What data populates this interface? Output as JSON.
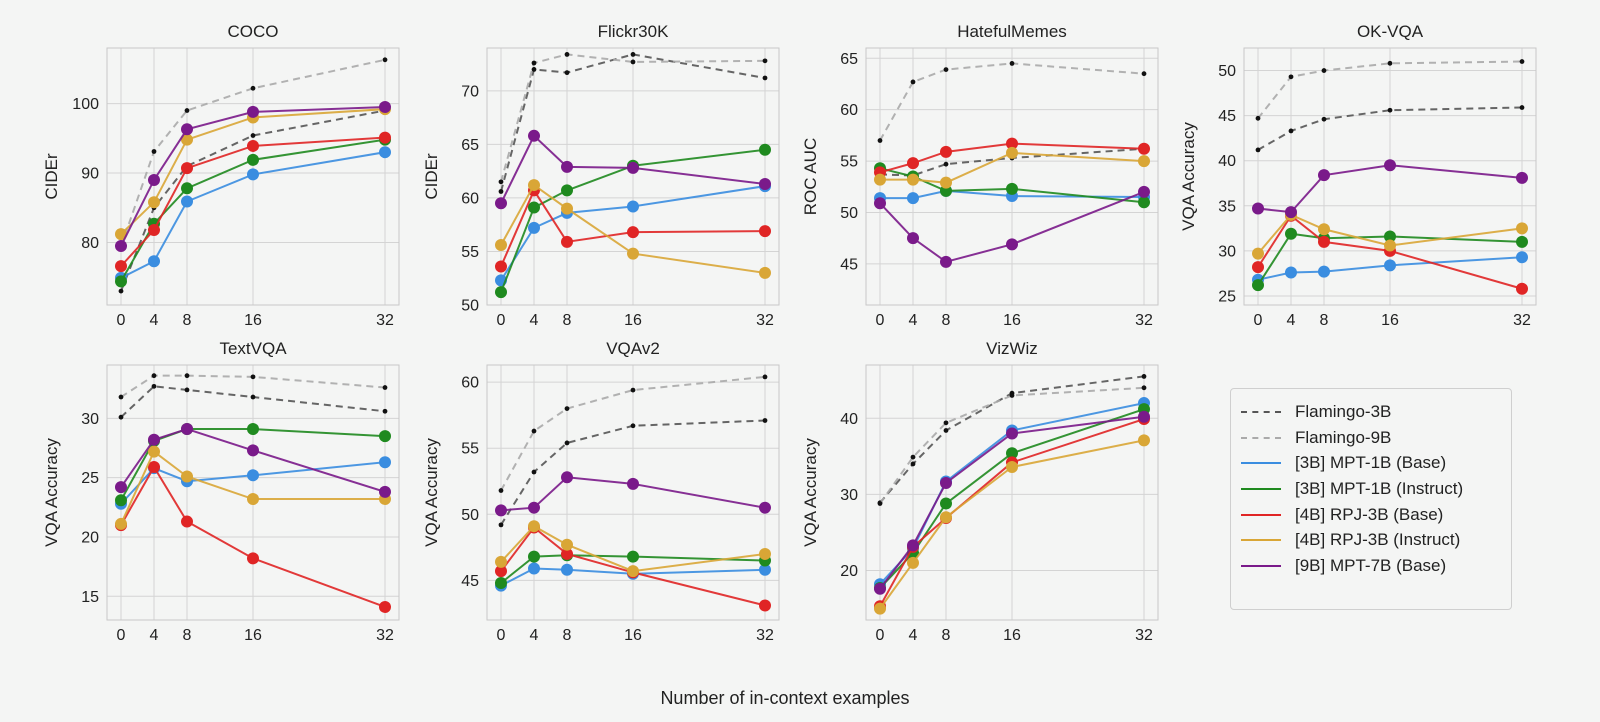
{
  "figure": {
    "xlabel": "Number of in-context examples"
  },
  "legend": [
    {
      "name": "Flamingo-3B",
      "color": "#555555",
      "style": "dashed"
    },
    {
      "name": "Flamingo-9B",
      "color": "#aaaaaa",
      "style": "dashed"
    },
    {
      "name": "[3B] MPT-1B (Base)",
      "color": "#3a8de0",
      "style": "solid"
    },
    {
      "name": "[3B] MPT-1B (Instruct)",
      "color": "#1f8a1f",
      "style": "solid"
    },
    {
      "name": "[4B] RPJ-3B (Base)",
      "color": "#e02525",
      "style": "solid"
    },
    {
      "name": "[4B] RPJ-3B (Instruct)",
      "color": "#d9a636",
      "style": "solid"
    },
    {
      "name": "[9B] MPT-7B (Base)",
      "color": "#7a1a8a",
      "style": "solid"
    }
  ],
  "chart_data": [
    {
      "type": "line",
      "title": "COCO",
      "ylabel": "CIDEr",
      "x": [
        0,
        4,
        8,
        16,
        32
      ],
      "xticks": [
        0,
        4,
        8,
        16,
        32
      ],
      "ylim": [
        71,
        108
      ],
      "yticks": [
        80,
        90,
        100
      ],
      "grid": true,
      "series": [
        {
          "name": "Flamingo-3B",
          "values": [
            73.0,
            85.0,
            91.0,
            95.4,
            99.0
          ]
        },
        {
          "name": "Flamingo-9B",
          "values": [
            79.4,
            93.1,
            99.0,
            102.2,
            106.3
          ]
        },
        {
          "name": "[3B] MPT-1B (Base)",
          "values": [
            74.9,
            77.3,
            85.9,
            89.8,
            93.0
          ]
        },
        {
          "name": "[3B] MPT-1B (Instruct)",
          "values": [
            74.4,
            82.7,
            87.8,
            91.9,
            94.8
          ]
        },
        {
          "name": "[4B] RPJ-3B (Base)",
          "values": [
            76.6,
            81.8,
            90.7,
            93.9,
            95.1
          ]
        },
        {
          "name": "[4B] RPJ-3B (Instruct)",
          "values": [
            81.2,
            85.8,
            94.8,
            98.0,
            99.2
          ]
        },
        {
          "name": "[9B] MPT-7B (Base)",
          "values": [
            79.5,
            89.0,
            96.3,
            98.8,
            99.5
          ]
        }
      ]
    },
    {
      "type": "line",
      "title": "Flickr30K",
      "ylabel": "CIDEr",
      "x": [
        0,
        4,
        8,
        16,
        32
      ],
      "xticks": [
        0,
        4,
        8,
        16,
        32
      ],
      "ylim": [
        50,
        74
      ],
      "yticks": [
        50,
        55,
        60,
        65,
        70
      ],
      "grid": true,
      "series": [
        {
          "name": "Flamingo-3B",
          "values": [
            60.6,
            72.0,
            71.7,
            73.4,
            71.2
          ]
        },
        {
          "name": "Flamingo-9B",
          "values": [
            61.5,
            72.6,
            73.4,
            72.7,
            72.8
          ]
        },
        {
          "name": "[3B] MPT-1B (Base)",
          "values": [
            52.3,
            57.2,
            58.6,
            59.2,
            61.1
          ]
        },
        {
          "name": "[3B] MPT-1B (Instruct)",
          "values": [
            51.2,
            59.1,
            60.7,
            63.0,
            64.5
          ]
        },
        {
          "name": "[4B] RPJ-3B (Base)",
          "values": [
            53.6,
            60.7,
            55.9,
            56.8,
            56.9
          ]
        },
        {
          "name": "[4B] RPJ-3B (Instruct)",
          "values": [
            55.6,
            61.2,
            59.0,
            54.8,
            53.0
          ]
        },
        {
          "name": "[9B] MPT-7B (Base)",
          "values": [
            59.5,
            65.8,
            62.9,
            62.8,
            61.3
          ]
        }
      ]
    },
    {
      "type": "line",
      "title": "HatefulMemes",
      "ylabel": "ROC AUC",
      "x": [
        0,
        4,
        8,
        16,
        32
      ],
      "xticks": [
        0,
        4,
        8,
        16,
        32
      ],
      "ylim": [
        41,
        66
      ],
      "yticks": [
        45,
        50,
        55,
        60,
        65
      ],
      "grid": true,
      "series": [
        {
          "name": "Flamingo-3B",
          "values": [
            53.7,
            53.6,
            54.7,
            55.3,
            56.2
          ]
        },
        {
          "name": "Flamingo-9B",
          "values": [
            57.0,
            62.7,
            63.9,
            64.5,
            63.5
          ]
        },
        {
          "name": "[3B] MPT-1B (Base)",
          "values": [
            51.4,
            51.4,
            52.1,
            51.6,
            51.5
          ]
        },
        {
          "name": "[3B] MPT-1B (Instruct)",
          "values": [
            54.3,
            53.5,
            52.1,
            52.3,
            51.0
          ]
        },
        {
          "name": "[4B] RPJ-3B (Base)",
          "values": [
            53.9,
            54.8,
            55.9,
            56.7,
            56.2
          ]
        },
        {
          "name": "[4B] RPJ-3B (Instruct)",
          "values": [
            53.2,
            53.2,
            52.9,
            55.8,
            55.0
          ]
        },
        {
          "name": "[9B] MPT-7B (Base)",
          "values": [
            50.9,
            47.5,
            45.2,
            46.9,
            52.0
          ]
        }
      ]
    },
    {
      "type": "line",
      "title": "OK-VQA",
      "ylabel": "VQA Accuracy",
      "x": [
        0,
        4,
        8,
        16,
        32
      ],
      "xticks": [
        0,
        4,
        8,
        16,
        32
      ],
      "ylim": [
        24,
        52.5
      ],
      "yticks": [
        25,
        30,
        35,
        40,
        45,
        50
      ],
      "grid": true,
      "series": [
        {
          "name": "Flamingo-3B",
          "values": [
            41.2,
            43.3,
            44.6,
            45.6,
            45.9
          ]
        },
        {
          "name": "Flamingo-9B",
          "values": [
            44.7,
            49.3,
            50.0,
            50.8,
            51.0
          ]
        },
        {
          "name": "[3B] MPT-1B (Base)",
          "values": [
            26.8,
            27.6,
            27.7,
            28.4,
            29.3
          ]
        },
        {
          "name": "[3B] MPT-1B (Instruct)",
          "values": [
            26.2,
            31.9,
            31.4,
            31.6,
            31.0
          ]
        },
        {
          "name": "[4B] RPJ-3B (Base)",
          "values": [
            28.2,
            33.9,
            31.0,
            30.0,
            25.8
          ]
        },
        {
          "name": "[4B] RPJ-3B (Instruct)",
          "values": [
            29.7,
            34.0,
            32.4,
            30.6,
            32.5
          ]
        },
        {
          "name": "[9B] MPT-7B (Base)",
          "values": [
            34.7,
            34.3,
            38.4,
            39.5,
            38.1
          ]
        }
      ]
    },
    {
      "type": "line",
      "title": "TextVQA",
      "ylabel": "VQA Accuracy",
      "x": [
        0,
        4,
        8,
        16,
        32
      ],
      "xticks": [
        0,
        4,
        8,
        16,
        32
      ],
      "ylim": [
        13,
        34.5
      ],
      "yticks": [
        15,
        20,
        25,
        30
      ],
      "grid": true,
      "series": [
        {
          "name": "Flamingo-3B",
          "values": [
            30.1,
            32.7,
            32.4,
            31.8,
            30.6
          ]
        },
        {
          "name": "Flamingo-9B",
          "values": [
            31.8,
            33.6,
            33.6,
            33.5,
            32.6
          ]
        },
        {
          "name": "[3B] MPT-1B (Base)",
          "values": [
            22.8,
            25.8,
            24.7,
            25.2,
            26.3
          ]
        },
        {
          "name": "[3B] MPT-1B (Instruct)",
          "values": [
            23.1,
            28.1,
            29.1,
            29.1,
            28.5
          ]
        },
        {
          "name": "[4B] RPJ-3B (Base)",
          "values": [
            21.0,
            25.9,
            21.3,
            18.2,
            14.1
          ]
        },
        {
          "name": "[4B] RPJ-3B (Instruct)",
          "values": [
            21.1,
            27.2,
            25.1,
            23.2,
            23.2
          ]
        },
        {
          "name": "[9B] MPT-7B (Base)",
          "values": [
            24.2,
            28.2,
            29.1,
            27.3,
            23.8
          ]
        }
      ]
    },
    {
      "type": "line",
      "title": "VQAv2",
      "ylabel": "VQA Accuracy",
      "x": [
        0,
        4,
        8,
        16,
        32
      ],
      "xticks": [
        0,
        4,
        8,
        16,
        32
      ],
      "ylim": [
        42,
        61.3
      ],
      "yticks": [
        45,
        50,
        55,
        60
      ],
      "grid": true,
      "series": [
        {
          "name": "Flamingo-3B",
          "values": [
            49.2,
            53.2,
            55.4,
            56.7,
            57.1
          ]
        },
        {
          "name": "Flamingo-9B",
          "values": [
            51.8,
            56.3,
            58.0,
            59.4,
            60.4
          ]
        },
        {
          "name": "[3B] MPT-1B (Base)",
          "values": [
            44.6,
            45.9,
            45.8,
            45.5,
            45.8
          ]
        },
        {
          "name": "[3B] MPT-1B (Instruct)",
          "values": [
            44.8,
            46.8,
            46.9,
            46.8,
            46.5
          ]
        },
        {
          "name": "[4B] RPJ-3B (Base)",
          "values": [
            45.7,
            49.0,
            47.0,
            45.6,
            43.1
          ]
        },
        {
          "name": "[4B] RPJ-3B (Instruct)",
          "values": [
            46.4,
            49.1,
            47.7,
            45.7,
            47.0
          ]
        },
        {
          "name": "[9B] MPT-7B (Base)",
          "values": [
            50.3,
            50.5,
            52.8,
            52.3,
            50.5
          ]
        }
      ]
    },
    {
      "type": "line",
      "title": "VizWiz",
      "ylabel": "VQA Accuracy",
      "x": [
        0,
        4,
        8,
        16,
        32
      ],
      "xticks": [
        0,
        4,
        8,
        16,
        32
      ],
      "ylim": [
        13.5,
        47
      ],
      "yticks": [
        20,
        30,
        40
      ],
      "grid": true,
      "series": [
        {
          "name": "Flamingo-3B",
          "values": [
            28.9,
            34.0,
            38.4,
            43.3,
            45.5
          ]
        },
        {
          "name": "Flamingo-9B",
          "values": [
            28.8,
            34.9,
            39.4,
            43.0,
            44.0
          ]
        },
        {
          "name": "[3B] MPT-1B (Base)",
          "values": [
            18.2,
            22.9,
            31.7,
            38.4,
            42.0
          ]
        },
        {
          "name": "[3B] MPT-1B (Instruct)",
          "values": [
            17.7,
            22.3,
            28.8,
            35.4,
            41.2
          ]
        },
        {
          "name": "[4B] RPJ-3B (Base)",
          "values": [
            15.3,
            23.1,
            26.9,
            34.2,
            39.9
          ]
        },
        {
          "name": "[4B] RPJ-3B (Instruct)",
          "values": [
            15.0,
            21.0,
            27.0,
            33.6,
            37.1
          ]
        },
        {
          "name": "[9B] MPT-7B (Base)",
          "values": [
            17.6,
            23.3,
            31.5,
            38.0,
            40.2
          ]
        }
      ]
    }
  ]
}
